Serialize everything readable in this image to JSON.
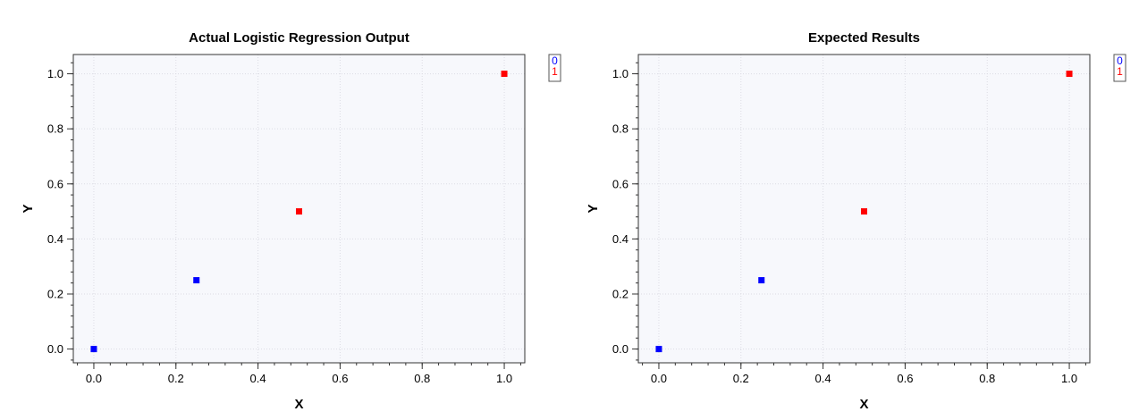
{
  "chart_data": [
    {
      "type": "scatter",
      "title": "Actual Logistic Regression Output",
      "xlabel": "X",
      "ylabel": "Y",
      "xlim": [
        -0.05,
        1.05
      ],
      "ylim": [
        -0.05,
        1.07
      ],
      "xticks": [
        "0.0",
        "0.2",
        "0.4",
        "0.6",
        "0.8",
        "1.0"
      ],
      "yticks": [
        "0.0",
        "0.2",
        "0.4",
        "0.6",
        "0.8",
        "1.0"
      ],
      "grid": true,
      "legend_position": "top-right",
      "series": [
        {
          "name": "0",
          "color": "#0000ff",
          "points": [
            {
              "x": 0.0,
              "y": 0.0
            },
            {
              "x": 0.25,
              "y": 0.25
            }
          ]
        },
        {
          "name": "1",
          "color": "#ff0000",
          "points": [
            {
              "x": 0.5,
              "y": 0.5
            },
            {
              "x": 1.0,
              "y": 1.0
            }
          ]
        }
      ]
    },
    {
      "type": "scatter",
      "title": "Expected Results",
      "xlabel": "X",
      "ylabel": "Y",
      "xlim": [
        -0.05,
        1.05
      ],
      "ylim": [
        -0.05,
        1.07
      ],
      "xticks": [
        "0.0",
        "0.2",
        "0.4",
        "0.6",
        "0.8",
        "1.0"
      ],
      "yticks": [
        "0.0",
        "0.2",
        "0.4",
        "0.6",
        "0.8",
        "1.0"
      ],
      "grid": true,
      "legend_position": "top-right",
      "series": [
        {
          "name": "0",
          "color": "#0000ff",
          "points": [
            {
              "x": 0.0,
              "y": 0.0
            },
            {
              "x": 0.25,
              "y": 0.25
            }
          ]
        },
        {
          "name": "1",
          "color": "#ff0000",
          "points": [
            {
              "x": 0.5,
              "y": 0.5
            },
            {
              "x": 1.0,
              "y": 1.0
            }
          ]
        }
      ]
    }
  ]
}
